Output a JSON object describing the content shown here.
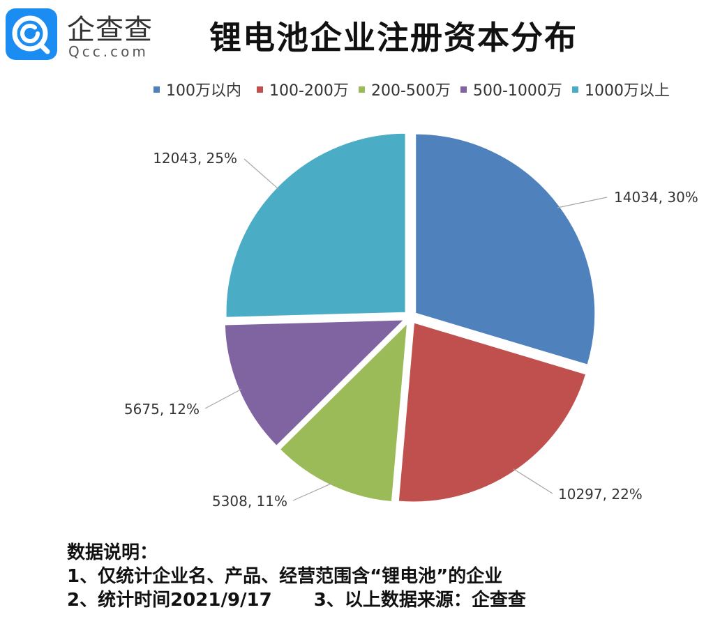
{
  "logo": {
    "cn": "企查查",
    "en": "Qcc.com",
    "brand_color": "#1b8cf2"
  },
  "title": "锂电池企业注册资本分布",
  "chart_data": {
    "type": "pie",
    "title": "锂电池企业注册资本分布",
    "legend_position": "top",
    "slices": [
      {
        "name": "100万以内",
        "value": 14034,
        "percent": 30,
        "label": "14034, 30%",
        "color": "#4f81bd"
      },
      {
        "name": "100-200万",
        "value": 10297,
        "percent": 22,
        "label": "10297, 22%",
        "color": "#c0504d"
      },
      {
        "name": "200-500万",
        "value": 5308,
        "percent": 11,
        "label": "5308, 11%",
        "color": "#9bbb59"
      },
      {
        "name": "500-1000万",
        "value": 5675,
        "percent": 12,
        "label": "5675, 12%",
        "color": "#8064a2"
      },
      {
        "name": "1000万以上",
        "value": 12043,
        "percent": 25,
        "label": "12043, 25%",
        "color": "#4bacc6"
      }
    ]
  },
  "notes": {
    "heading": "数据说明：",
    "line1": "1、仅统计企业名、产品、经营范围含“锂电池”的企业",
    "line2a": "2、统计时间2021/9/17",
    "line2b": "3、以上数据来源：企查查"
  }
}
